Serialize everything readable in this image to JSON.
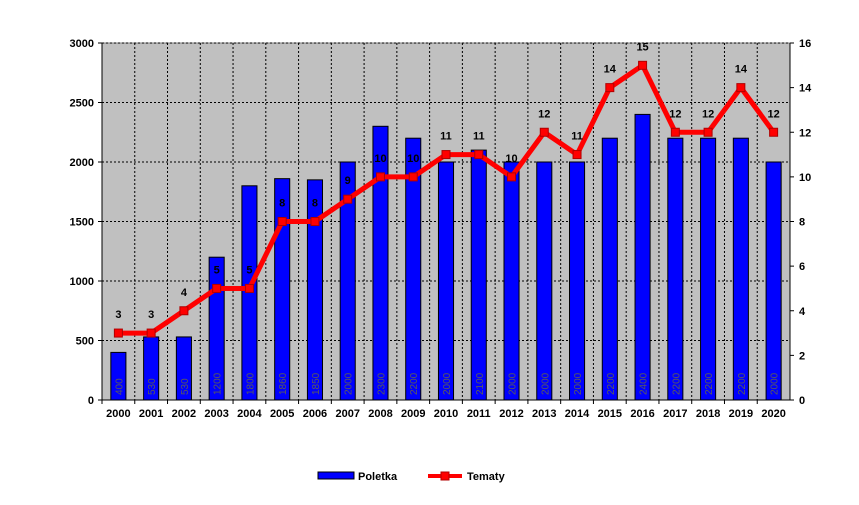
{
  "chart_data": {
    "type": "bar",
    "categories": [
      "2000",
      "2001",
      "2002",
      "2003",
      "2004",
      "2005",
      "2006",
      "2007",
      "2008",
      "2009",
      "2010",
      "2011",
      "2012",
      "2013",
      "2014",
      "2015",
      "2016",
      "2017",
      "2018",
      "2019",
      "2020"
    ],
    "series": [
      {
        "name": "Poletka",
        "chart_type": "bar",
        "axis": "left",
        "color": "#0000ff",
        "values": [
          400,
          530,
          530,
          1200,
          1800,
          1860,
          1850,
          2000,
          2300,
          2200,
          2000,
          2100,
          2000,
          2000,
          2000,
          2200,
          2400,
          2200,
          2200,
          2200,
          2000
        ]
      },
      {
        "name": "Tematy",
        "chart_type": "line",
        "axis": "right",
        "color": "#ff0000",
        "values": [
          3,
          3,
          4,
          5,
          5,
          8,
          8,
          9,
          10,
          10,
          11,
          11,
          10,
          12,
          11,
          14,
          15,
          12,
          12,
          14,
          12
        ]
      }
    ],
    "ylim_left": [
      0,
      3000
    ],
    "ylim_right": [
      0,
      16
    ],
    "y_ticks_left": [
      "0",
      "500",
      "1000",
      "1500",
      "2000",
      "2500",
      "3000"
    ],
    "y_ticks_right": [
      "0",
      "2",
      "4",
      "6",
      "8",
      "10",
      "12",
      "14",
      "16"
    ],
    "bar_labels": [
      "400",
      "530",
      "530",
      "1200",
      "1800",
      "1860",
      "1850",
      "2000",
      "2300",
      "2200",
      "2000",
      "2100",
      "2000",
      "2000",
      "2000",
      "2200",
      "2400",
      "2200",
      "2200",
      "2200",
      "2000"
    ],
    "line_labels": [
      "3",
      "3",
      "4",
      "5",
      "5",
      "8",
      "8",
      "9",
      "10",
      "10",
      "11",
      "11",
      "10",
      "12",
      "11",
      "14",
      "15",
      "12",
      "12",
      "14",
      "12"
    ],
    "plot_background": "#c0c0c0",
    "grid": true,
    "legend_position": "bottom"
  }
}
